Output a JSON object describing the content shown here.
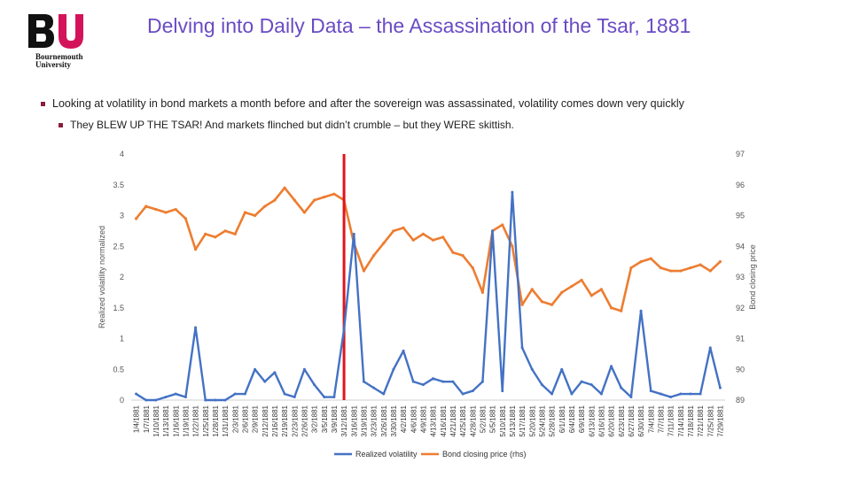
{
  "logo": {
    "letters": "BU",
    "line1": "Bournemouth",
    "line2": "University"
  },
  "title": "Delving into Daily Data – the Assassination of the Tsar, 1881",
  "bullets": [
    "Looking at volatility in bond markets a month before and after the sovereign was assassinated, volatility comes down very quickly",
    "They BLEW UP THE TSAR! And markets flinched but didn’t crumble – but they WERE skittish."
  ],
  "colors": {
    "title": "#6a4bc4",
    "volatility": "#4472c4",
    "bond": "#ed7d31",
    "event_line": "#e0141c",
    "bullet": "#8a1e3c"
  },
  "chart_data": {
    "type": "line",
    "ylabel": "Realized volatility normalized",
    "y2label": "Bond closing price",
    "ylim": [
      0,
      4
    ],
    "y2lim": [
      89,
      97
    ],
    "yticks": [
      "0",
      "0.5",
      "1",
      "1.5",
      "2",
      "2.5",
      "3",
      "3.5",
      "4"
    ],
    "y2ticks": [
      "89",
      "90",
      "91",
      "92",
      "93",
      "94",
      "95",
      "96",
      "97"
    ],
    "event_date": "3/12/1881",
    "x": [
      "1/4/1881",
      "1/7/1881",
      "1/10/1881",
      "1/13/1881",
      "1/16/1881",
      "1/19/1881",
      "1/22/1881",
      "1/25/1881",
      "1/28/1881",
      "1/31/1881",
      "2/3/1881",
      "2/6/1881",
      "2/9/1881",
      "2/12/1881",
      "2/16/1881",
      "2/19/1881",
      "2/23/1881",
      "2/26/1881",
      "3/2/1881",
      "3/5/1881",
      "3/9/1881",
      "3/12/1881",
      "3/16/1881",
      "3/19/1881",
      "3/23/1881",
      "3/26/1881",
      "3/30/1881",
      "4/2/1881",
      "4/6/1881",
      "4/9/1881",
      "4/13/1881",
      "4/16/1881",
      "4/21/1881",
      "4/25/1881",
      "4/28/1881",
      "5/2/1881",
      "5/5/1881",
      "5/10/1881",
      "5/13/1881",
      "5/17/1881",
      "5/20/1881",
      "5/24/1881",
      "5/28/1881",
      "6/1/1881",
      "6/4/1881",
      "6/9/1881",
      "6/13/1881",
      "6/16/1881",
      "6/20/1881",
      "6/23/1881",
      "6/27/1881",
      "6/30/1881",
      "7/4/1881",
      "7/7/1881",
      "7/11/1881",
      "7/14/1881",
      "7/18/1881",
      "7/21/1881",
      "7/25/1881",
      "7/29/1881"
    ],
    "series": [
      {
        "name": "Realized volatility",
        "axis": "left",
        "values": [
          0.1,
          0.0,
          0.0,
          0.05,
          0.1,
          0.05,
          1.18,
          0.0,
          0.0,
          0.0,
          0.1,
          0.1,
          0.5,
          0.3,
          0.45,
          0.1,
          0.05,
          0.5,
          0.25,
          0.05,
          0.05,
          1.15,
          2.7,
          0.3,
          0.2,
          0.1,
          0.5,
          0.8,
          0.3,
          0.25,
          0.35,
          0.3,
          0.3,
          0.1,
          0.15,
          0.3,
          2.75,
          0.15,
          3.38,
          0.85,
          0.5,
          0.25,
          0.1,
          0.5,
          0.1,
          0.3,
          0.25,
          0.1,
          0.55,
          0.2,
          0.05,
          1.45,
          0.15,
          0.1,
          0.05,
          0.1,
          0.1,
          0.1,
          0.85,
          0.2
        ]
      },
      {
        "name": "Bond closing price (rhs)",
        "axis": "right",
        "values": [
          94.9,
          95.3,
          95.2,
          95.1,
          95.2,
          94.9,
          93.9,
          94.4,
          94.3,
          94.5,
          94.4,
          95.1,
          95.0,
          95.3,
          95.5,
          95.9,
          95.5,
          95.1,
          95.5,
          95.6,
          95.7,
          95.5,
          94.1,
          93.2,
          93.7,
          94.1,
          94.5,
          94.6,
          94.2,
          94.4,
          94.2,
          94.3,
          93.8,
          93.7,
          93.3,
          92.5,
          94.5,
          94.7,
          94.0,
          92.1,
          92.6,
          92.2,
          92.1,
          92.5,
          92.7,
          92.9,
          92.4,
          92.6,
          92.0,
          91.9,
          93.3,
          93.5,
          93.6,
          93.3,
          93.2,
          93.2,
          93.3,
          93.4,
          93.2,
          93.5
        ]
      }
    ],
    "legend": {
      "position": "bottom",
      "items": [
        "Realized volatility",
        "Bond closing price (rhs)"
      ]
    },
    "grid": false
  }
}
